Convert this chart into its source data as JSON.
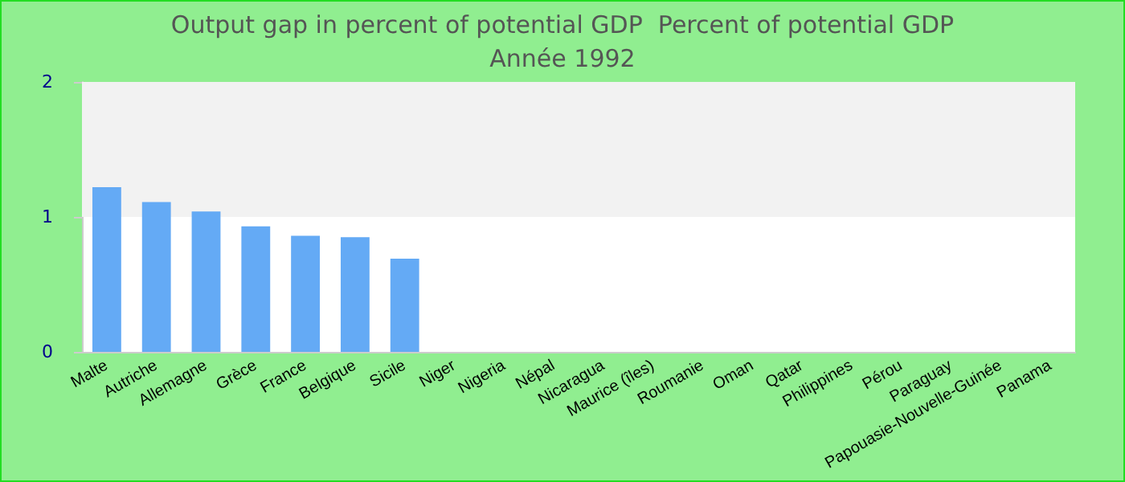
{
  "chart_data": {
    "type": "bar",
    "title": "Output gap in percent of potential GDP  Percent of potential GDP",
    "subtitle": "Année 1992",
    "categories": [
      "Malte",
      "Autriche",
      "Allemagne",
      "Grèce",
      "France",
      "Belgique",
      "Sicile",
      "Niger",
      "Nigeria",
      "Népal",
      "Nicaragua",
      "Maurice (îles)",
      "Roumanie",
      "Oman",
      "Qatar",
      "Philippines",
      "Pérou",
      "Paraguay",
      "Papouasie-Nouvelle-Guinée",
      "Panama"
    ],
    "values": [
      1.22,
      1.11,
      1.04,
      0.93,
      0.86,
      0.85,
      0.69,
      null,
      null,
      null,
      null,
      null,
      null,
      null,
      null,
      null,
      null,
      null,
      null,
      null
    ],
    "color": "#64aaf5",
    "ylim": [
      0,
      2
    ],
    "yticks": [
      0,
      1,
      2
    ],
    "bands": [
      {
        "axis": "y",
        "from": 1,
        "to": 2,
        "color": "#f2f2f2"
      }
    ],
    "grid": false
  }
}
